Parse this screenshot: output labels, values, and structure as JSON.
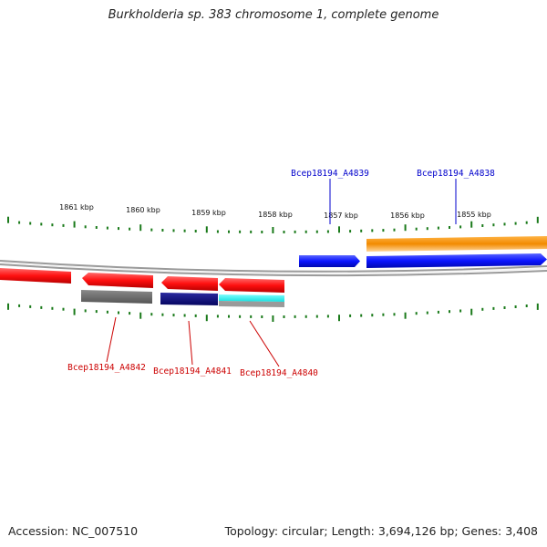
{
  "title": "Burkholderia sp. 383 chromosome 1, complete genome",
  "footer": {
    "accession": "Accession: NC_007510",
    "topology": "Topology: circular; Length: 3,694,126 bp; Genes: 3,408"
  },
  "scale_labels": [
    "1861 kbp",
    "1860 kbp",
    "1859 kbp",
    "1858 kbp",
    "1857 kbp",
    "1856 kbp",
    "1855 kbp"
  ],
  "gene_labels": {
    "forward": [
      "Bcep18194_A4839",
      "Bcep18194_A4838"
    ],
    "reverse": [
      "Bcep18194_A4842",
      "Bcep18194_A4841",
      "Bcep18194_A4840"
    ]
  },
  "colors": {
    "forward_label": "#0000cc",
    "reverse_label": "#cc0000",
    "gene_red": "#ff1a1a",
    "gene_blue": "#0a1aff",
    "orange": "#f28a00",
    "navy": "#0a0a7a",
    "cyan": "#2ef5f5",
    "gray_feature": "#707070",
    "tick": "#1a7a1a",
    "backbone": "#888888"
  }
}
